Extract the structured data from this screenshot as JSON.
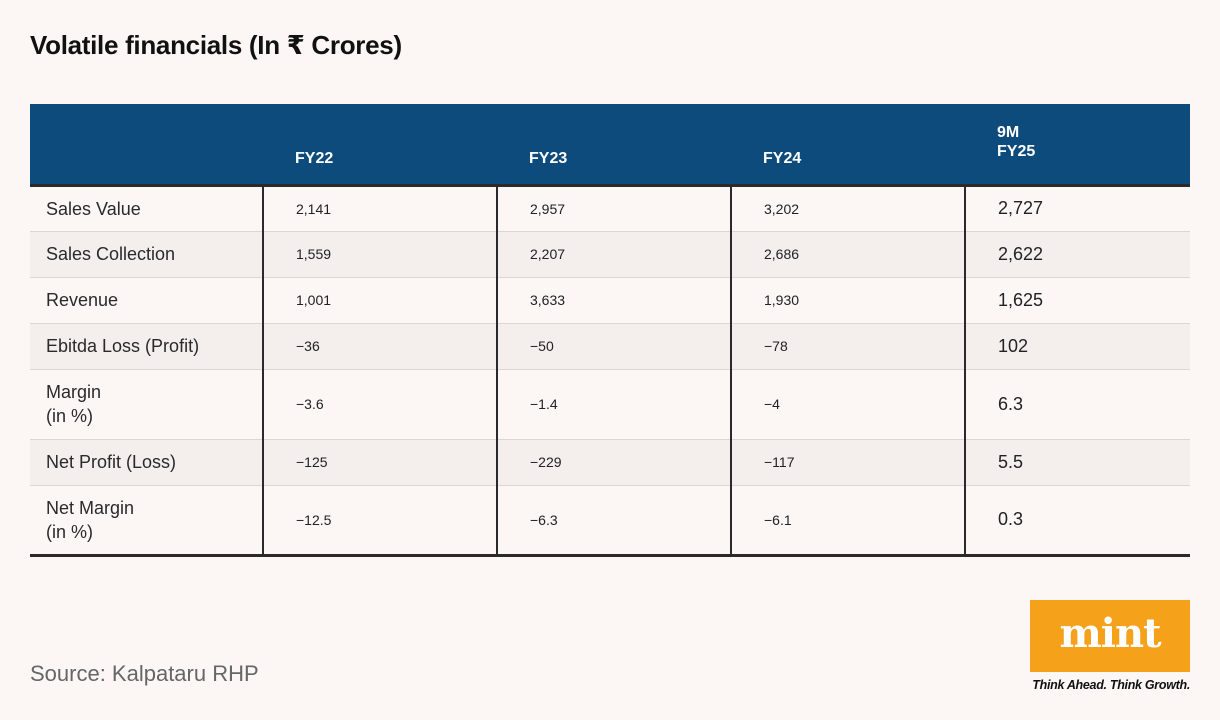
{
  "title": "Volatile financials (In ₹ Crores)",
  "chart_data": {
    "type": "table",
    "title": "Volatile financials (In ₹ Crores)",
    "columns": [
      "",
      "FY22",
      "FY23",
      "FY24",
      "9M FY25"
    ],
    "header_last_lines": [
      "9M",
      "FY25"
    ],
    "rows": [
      {
        "label": "Sales Value",
        "values": [
          "2,141",
          "2,957",
          "3,202",
          "2,727"
        ]
      },
      {
        "label": "Sales Collection",
        "values": [
          "1,559",
          "2,207",
          "2,686",
          "2,622"
        ]
      },
      {
        "label": "Revenue",
        "values": [
          "1,001",
          "3,633",
          "1,930",
          "1,625"
        ]
      },
      {
        "label": "Ebitda Loss (Profit)",
        "values": [
          "−36",
          "−50",
          "−78",
          "102"
        ]
      },
      {
        "label": "Margin\n(in %)",
        "values": [
          "−3.6",
          "−1.4",
          "−4",
          "6.3"
        ]
      },
      {
        "label": "Net Profit (Loss)",
        "values": [
          "−125",
          "−229",
          "−117",
          "5.5"
        ]
      },
      {
        "label": "Net Margin\n(in %)",
        "values": [
          "−12.5",
          "−6.3",
          "−6.1",
          "0.3"
        ]
      }
    ]
  },
  "source": "Source: Kalpataru RHP",
  "logo": {
    "text": "mint",
    "tagline": "Think Ahead. Think Growth.",
    "color": "#f5a21a"
  },
  "colors": {
    "header_bg": "#0c4b7c",
    "background": "#fcf7f5",
    "stripe": "#f4eeec"
  }
}
